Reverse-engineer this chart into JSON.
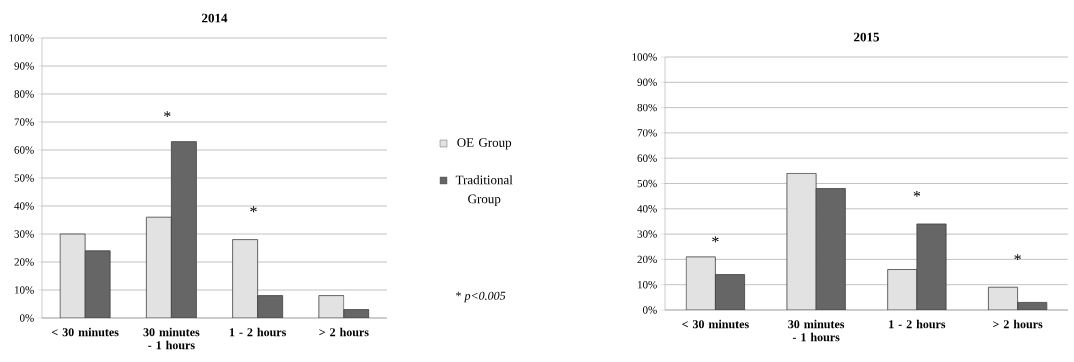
{
  "chart_data": [
    {
      "type": "bar",
      "title": "2014",
      "categories": [
        "< 30 minutes",
        "30 minutes - 1 hours",
        "1 - 2 hours",
        "> 2 hours"
      ],
      "series": [
        {
          "name": "OE Group",
          "color": "#e2e2e2",
          "values": [
            30,
            36,
            28,
            8
          ]
        },
        {
          "name": "Traditional Group",
          "color": "#666666",
          "values": [
            24,
            63,
            8,
            3
          ]
        }
      ],
      "ylim": [
        0,
        100
      ],
      "yticks": [
        {
          "value": 0,
          "label": "0%"
        },
        {
          "value": 10,
          "label": "10%"
        },
        {
          "value": 20,
          "label": "20%"
        },
        {
          "value": 30,
          "label": "30%"
        },
        {
          "value": 40,
          "label": "40%"
        },
        {
          "value": 50,
          "label": "50%"
        },
        {
          "value": 60,
          "label": "60%"
        },
        {
          "value": 70,
          "label": "70%"
        },
        {
          "value": 80,
          "label": "80%"
        },
        {
          "value": 90,
          "label": "90%"
        },
        {
          "value": 100,
          "label": "100%"
        }
      ],
      "grid": "y",
      "legend": "right",
      "annotations": [
        "*",
        "*",
        "* *p<0.005*"
      ]
    },
    {
      "type": "bar",
      "title": "2015",
      "categories": [
        "< 30 minutes",
        "30 minutes - 1 hours",
        "1 - 2 hours",
        "> 2 hours"
      ],
      "series": [
        {
          "color": "#e2e2e2",
          "values": [
            21,
            54,
            16,
            9
          ]
        },
        {
          "color": "#666666",
          "values": [
            14,
            48,
            34,
            3
          ]
        }
      ],
      "ylim": [
        0,
        100
      ],
      "yticks": [
        {
          "value": 0,
          "label": "0%"
        },
        {
          "value": 10,
          "label": "10%"
        },
        {
          "value": 20,
          "label": "20%"
        },
        {
          "value": 30,
          "label": "30%"
        },
        {
          "value": 40,
          "label": "40%"
        },
        {
          "value": 50,
          "label": "50%"
        },
        {
          "value": 60,
          "label": "60%"
        },
        {
          "value": 70,
          "label": "70%"
        },
        {
          "value": 80,
          "label": "80%"
        },
        {
          "value": 90,
          "label": "90%"
        },
        {
          "value": 100,
          "label": "100%"
        }
      ],
      "grid": "y",
      "annotations": [
        "*",
        "*",
        "*"
      ]
    }
  ]
}
